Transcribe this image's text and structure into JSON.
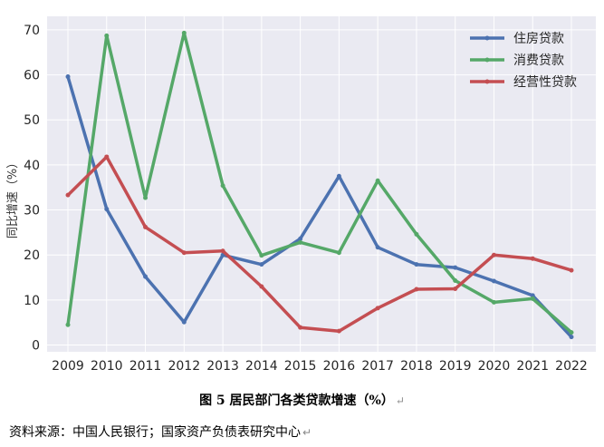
{
  "chart_data": {
    "type": "line",
    "x": [
      "2009",
      "2010",
      "2011",
      "2012",
      "2013",
      "2014",
      "2015",
      "2016",
      "2017",
      "2018",
      "2019",
      "2020",
      "2021",
      "2022"
    ],
    "series": [
      {
        "name": "住房贷款",
        "color": "#4C72B0",
        "values": [
          59.6,
          30.2,
          15.2,
          5.1,
          20.0,
          17.9,
          23.6,
          37.5,
          21.7,
          17.9,
          17.2,
          14.2,
          11.0,
          1.8
        ]
      },
      {
        "name": "消费贷款",
        "color": "#55A868",
        "values": [
          4.5,
          68.7,
          32.7,
          69.3,
          35.4,
          19.9,
          22.8,
          20.5,
          36.5,
          24.6,
          14.3,
          9.5,
          10.3,
          2.8
        ]
      },
      {
        "name": "经营性贷款",
        "color": "#C44E52",
        "values": [
          33.3,
          41.8,
          26.2,
          20.5,
          20.9,
          13.0,
          3.9,
          3.1,
          8.2,
          12.4,
          12.5,
          20.0,
          19.2,
          16.6
        ]
      }
    ],
    "ylabel": "同比增速（%）",
    "ylim": [
      -1.5,
      73
    ],
    "yticks": [
      0,
      10,
      20,
      30,
      40,
      50,
      60,
      70
    ],
    "grid": true,
    "legend_position": "top-right"
  },
  "caption": "图 5 居民部门各类贷款增速（%）",
  "source": "资料来源：中国人民银行；国家资产负债表研究中心"
}
